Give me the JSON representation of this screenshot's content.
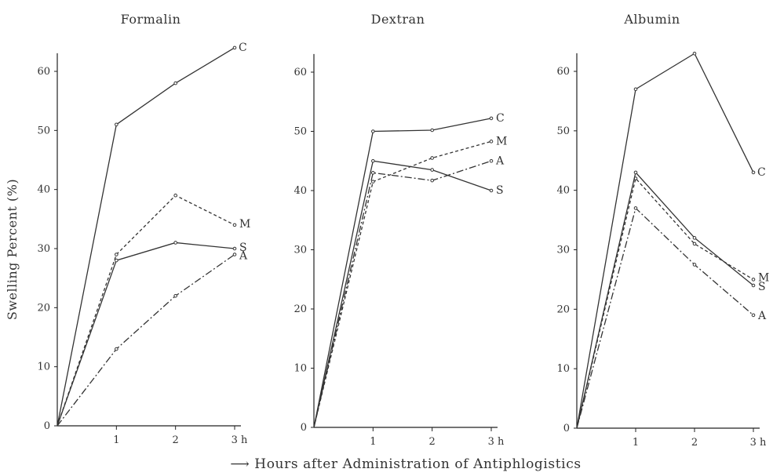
{
  "figure": {
    "y_axis_title": "Swelling Percent (%)",
    "x_axis_title": "⟶ Hours after Administration of Antiphlogistics"
  },
  "chart_data": [
    {
      "type": "line",
      "title": "Formalin",
      "x": [
        0,
        1,
        2,
        3
      ],
      "x_tick_labels": [
        "1",
        "2",
        "3 h"
      ],
      "y_ticks": [
        0,
        10,
        20,
        30,
        40,
        50,
        60
      ],
      "ylim": [
        0,
        62
      ],
      "series": [
        {
          "name": "C",
          "values": [
            0,
            51,
            58,
            64
          ],
          "dash": "solid"
        },
        {
          "name": "M",
          "values": [
            0,
            29,
            39,
            34
          ],
          "dash": "dashed"
        },
        {
          "name": "S",
          "values": [
            0,
            28,
            31,
            30
          ],
          "dash": "solid"
        },
        {
          "name": "A",
          "values": [
            0,
            13,
            22,
            29
          ],
          "dash": "dashdot"
        }
      ]
    },
    {
      "type": "line",
      "title": "Dextran",
      "x": [
        0,
        1,
        2,
        3
      ],
      "x_tick_labels": [
        "1",
        "2",
        "3 h"
      ],
      "y_ticks": [
        0,
        10,
        20,
        30,
        40,
        50,
        60
      ],
      "ylim": [
        0,
        62
      ],
      "series": [
        {
          "name": "C",
          "values": [
            0,
            50,
            50.2,
            52.2
          ],
          "dash": "solid"
        },
        {
          "name": "M",
          "values": [
            0,
            41.5,
            45.5,
            48.3
          ],
          "dash": "dashed"
        },
        {
          "name": "A",
          "values": [
            0,
            43,
            41.7,
            45
          ],
          "dash": "dashdot"
        },
        {
          "name": "S",
          "values": [
            0,
            45,
            43.5,
            40
          ],
          "dash": "solid"
        }
      ]
    },
    {
      "type": "line",
      "title": "Albumin",
      "x": [
        0,
        1,
        2,
        3
      ],
      "x_tick_labels": [
        "1",
        "2",
        "3 h"
      ],
      "y_ticks": [
        0,
        10,
        20,
        30,
        40,
        50,
        60
      ],
      "ylim": [
        0,
        62
      ],
      "series": [
        {
          "name": "C",
          "values": [
            0,
            57,
            63,
            43
          ],
          "dash": "solid"
        },
        {
          "name": "M",
          "values": [
            0,
            42,
            31,
            25
          ],
          "dash": "dashed"
        },
        {
          "name": "S",
          "values": [
            0,
            43,
            32,
            24
          ],
          "dash": "solid"
        },
        {
          "name": "A",
          "values": [
            0,
            37,
            27.5,
            19
          ],
          "dash": "dashdot"
        }
      ]
    }
  ]
}
